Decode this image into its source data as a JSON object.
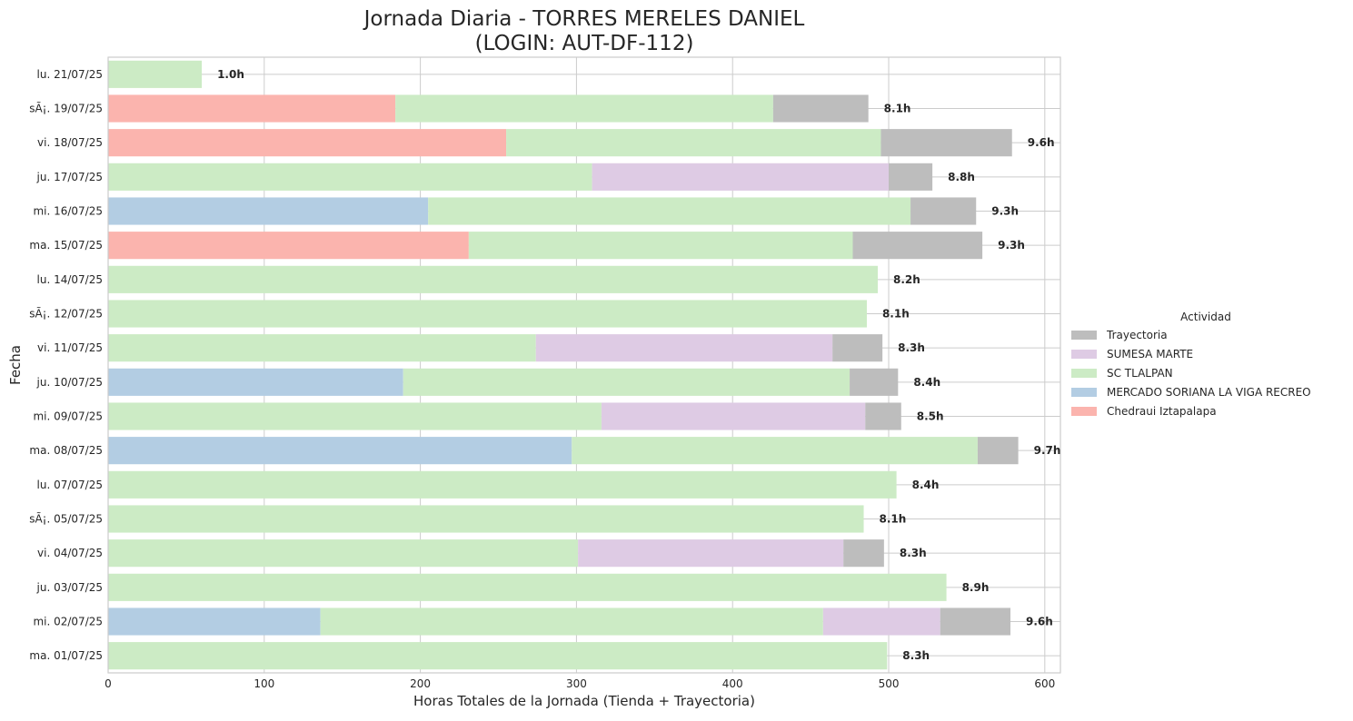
{
  "chart_data": {
    "type": "bar",
    "orientation": "horizontal",
    "stacked": true,
    "title": "Jornada Diaria - TORRES MERELES DANIEL",
    "subtitle": "(LOGIN: AUT-DF-112)",
    "xlabel": "Horas Totales de la Jornada (Tienda + Trayectoria)",
    "ylabel": "Fecha",
    "xlim": [
      0,
      610
    ],
    "xticks": [
      0,
      100,
      200,
      300,
      400,
      500,
      600
    ],
    "grid": true,
    "legend": {
      "title": "Actividad",
      "placement": "center-right outside"
    },
    "categories": [
      "lu. 21/07/25",
      "sÃ¡. 19/07/25",
      "vi. 18/07/25",
      "ju. 17/07/25",
      "mi. 16/07/25",
      "ma. 15/07/25",
      "lu. 14/07/25",
      "sÃ¡. 12/07/25",
      "vi. 11/07/25",
      "ju. 10/07/25",
      "mi. 09/07/25",
      "ma. 08/07/25",
      "lu. 07/07/25",
      "sÃ¡. 05/07/25",
      "vi. 04/07/25",
      "ju. 03/07/25",
      "mi. 02/07/25",
      "ma. 01/07/25"
    ],
    "stack_order": [
      "Chedraui Iztapalapa",
      "MERCADO SORIANA LA VIGA RECREO",
      "SC TLALPAN",
      "SUMESA MARTE",
      "Trayectoria"
    ],
    "series": [
      {
        "name": "Trayectoria",
        "color": "#bdbdbd",
        "values": [
          0,
          61,
          84,
          28,
          42,
          83,
          0,
          0,
          32,
          31,
          23,
          26,
          0,
          0,
          26,
          0,
          45,
          0
        ]
      },
      {
        "name": "SUMESA MARTE",
        "color": "#decbe4",
        "values": [
          0,
          0,
          0,
          190,
          0,
          0,
          0,
          0,
          190,
          0,
          169,
          0,
          0,
          0,
          170,
          0,
          75,
          0
        ]
      },
      {
        "name": "SC TLALPAN",
        "color": "#ccebc5",
        "values": [
          60,
          242,
          240,
          310,
          309,
          246,
          493,
          486,
          274,
          286,
          316,
          260,
          505,
          484,
          301,
          537,
          322,
          499
        ]
      },
      {
        "name": "MERCADO SORIANA LA VIGA RECREO",
        "color": "#b3cde3",
        "values": [
          0,
          0,
          0,
          0,
          205,
          0,
          0,
          0,
          0,
          189,
          0,
          297,
          0,
          0,
          0,
          0,
          136,
          0
        ]
      },
      {
        "name": "Chedraui Iztapalapa",
        "color": "#fbb4ae",
        "values": [
          0,
          184,
          255,
          0,
          0,
          231,
          0,
          0,
          0,
          0,
          0,
          0,
          0,
          0,
          0,
          0,
          0,
          0
        ]
      }
    ],
    "total_labels": [
      "1.0h",
      "8.1h",
      "9.6h",
      "8.8h",
      "9.3h",
      "9.3h",
      "8.2h",
      "8.1h",
      "8.3h",
      "8.4h",
      "8.5h",
      "9.7h",
      "8.4h",
      "8.1h",
      "8.3h",
      "8.9h",
      "9.6h",
      "8.3h"
    ]
  }
}
